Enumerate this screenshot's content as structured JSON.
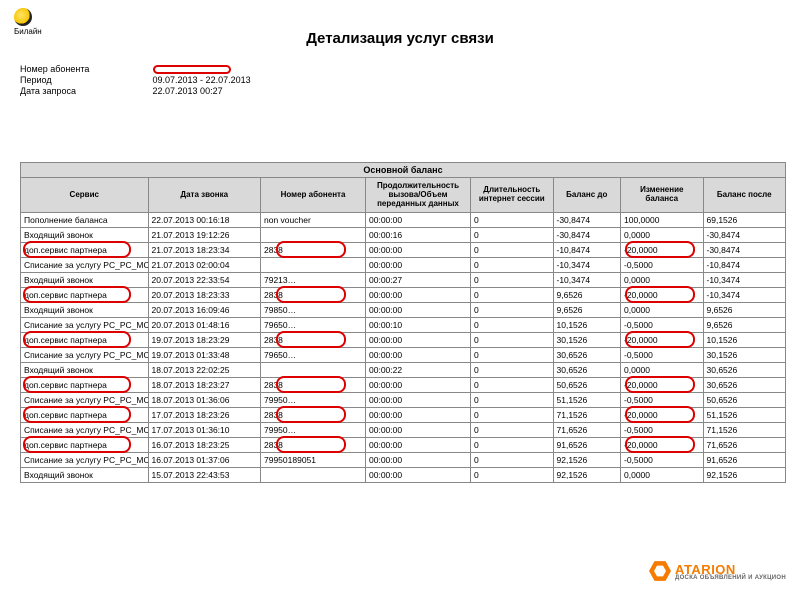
{
  "logo_text": "Билайн",
  "title": "Детализация услуг связи",
  "meta": {
    "subscriber_label": "Номер абонента",
    "period_label": "Период",
    "period_value": "09.07.2013 - 22.07.2013",
    "request_label": "Дата запроса",
    "request_value": "22.07.2013 00:27"
  },
  "table_caption": "Основной баланс",
  "columns": [
    "Сервис",
    "Дата звонка",
    "Номер абонента",
    "Продолжительность вызова/Объем переданных данных",
    "Длительность интернет сессии",
    "Баланс до",
    "Изменение баланса",
    "Баланс после"
  ],
  "rows": [
    [
      "Пополнение баланса",
      "22.07.2013 00:16:18",
      "non voucher",
      "00:00:00",
      "0",
      "-30,8474",
      "100,0000",
      "69,1526"
    ],
    [
      "Входящий звонок",
      "21.07.2013 19:12:26",
      "",
      "00:00:16",
      "0",
      "-30,8474",
      "0,0000",
      "-30,8474"
    ],
    [
      "доп.сервис партнера",
      "21.07.2013 18:23:34",
      "2838",
      "00:00:00",
      "0",
      "-10,8474",
      "-20,0000",
      "-30,8474"
    ],
    [
      "Списание за услугу PC_PC_MCCP_NW_D",
      "21.07.2013 02:00:04",
      "",
      "00:00:00",
      "0",
      "-10,3474",
      "-0,5000",
      "-10,8474"
    ],
    [
      "Входящий звонок",
      "20.07.2013 22:33:54",
      "79213…",
      "00:00:27",
      "0",
      "-10,3474",
      "0,0000",
      "-10,3474"
    ],
    [
      "доп.сервис партнера",
      "20.07.2013 18:23:33",
      "2838",
      "00:00:00",
      "0",
      "9,6526",
      "-20,0000",
      "-10,3474"
    ],
    [
      "Входящий звонок",
      "20.07.2013 16:09:46",
      "79850…",
      "00:00:00",
      "0",
      "9,6526",
      "0,0000",
      "9,6526"
    ],
    [
      "Списание за услугу PC_PC_MCCP_NW_D",
      "20.07.2013 01:48:16",
      "79650…",
      "00:00:10",
      "0",
      "10,1526",
      "-0,5000",
      "9,6526"
    ],
    [
      "доп.сервис партнера",
      "19.07.2013 18:23:29",
      "2838",
      "00:00:00",
      "0",
      "30,1526",
      "-20,0000",
      "10,1526"
    ],
    [
      "Списание за услугу PC_PC_MCCP_NW_D",
      "19.07.2013 01:33:48",
      "79650…",
      "00:00:00",
      "0",
      "30,6526",
      "-0,5000",
      "30,1526"
    ],
    [
      "Входящий звонок",
      "18.07.2013 22:02:25",
      "",
      "00:00:22",
      "0",
      "30,6526",
      "0,0000",
      "30,6526"
    ],
    [
      "доп.сервис партнера",
      "18.07.2013 18:23:27",
      "2838",
      "00:00:00",
      "0",
      "50,6526",
      "-20,0000",
      "30,6526"
    ],
    [
      "Списание за услугу PC_PC_MCCP_NW_D",
      "18.07.2013 01:36:06",
      "79950…",
      "00:00:00",
      "0",
      "51,1526",
      "-0,5000",
      "50,6526"
    ],
    [
      "доп.сервис партнера",
      "17.07.2013 18:23:26",
      "2838",
      "00:00:00",
      "0",
      "71,1526",
      "-20,0000",
      "51,1526"
    ],
    [
      "Списание за услугу PC_PC_MCCP_NW_D",
      "17.07.2013 01:36:10",
      "79950…",
      "00:00:00",
      "0",
      "71,6526",
      "-0,5000",
      "71,1526"
    ],
    [
      "доп.сервис партнера",
      "16.07.2013 18:23:25",
      "2838",
      "00:00:00",
      "0",
      "91,6526",
      "-20,0000",
      "71,6526"
    ],
    [
      "Списание за услугу PC_PC_MCCP_NW_D",
      "16.07.2013 01:37:06",
      "79950189051",
      "00:00:00",
      "0",
      "92,1526",
      "-0,5000",
      "91,6526"
    ],
    [
      "Входящий звонок",
      "15.07.2013 22:43:53",
      "",
      "00:00:00",
      "0",
      "92,1526",
      "0,0000",
      "92,1526"
    ]
  ],
  "highlight_rows_service": [
    2,
    5,
    8,
    11,
    13,
    15
  ],
  "highlight_rows_change": [
    2,
    5,
    8,
    11,
    13,
    15
  ],
  "highlight_rows_number": [
    2,
    5,
    8,
    11,
    13,
    15
  ],
  "watermark": {
    "name": "ATARION",
    "sub": "ДОСКА ОБЪЯВЛЕНИЙ И АУКЦИОН"
  },
  "colors": {
    "highlight": "#d00",
    "header_bg": "#d9d9d9",
    "accent": "#f57c00"
  }
}
